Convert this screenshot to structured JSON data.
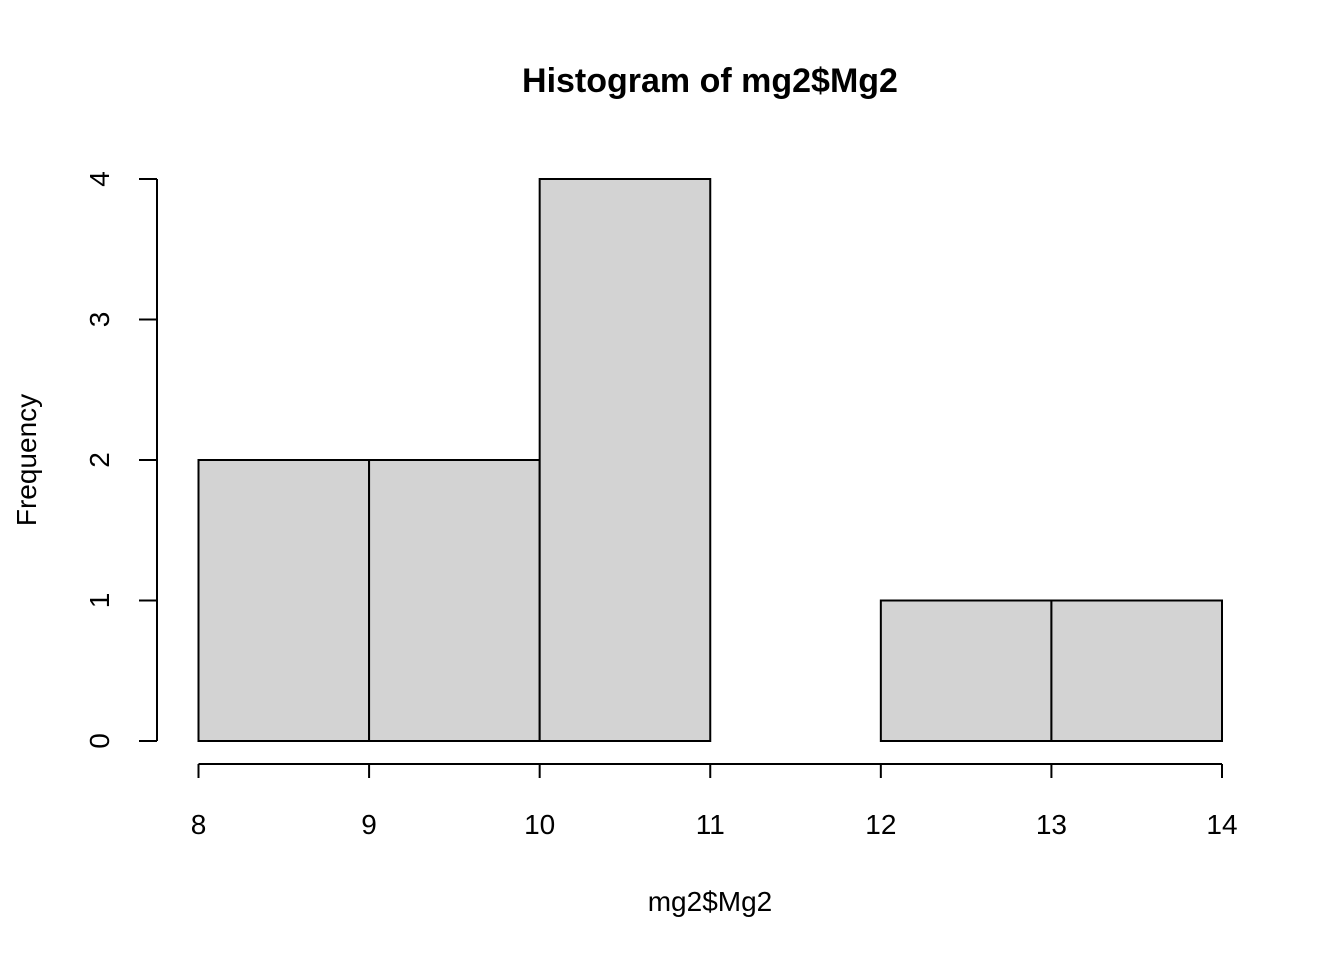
{
  "chart_data": {
    "type": "bar",
    "subtype": "histogram",
    "title": "Histogram of mg2$Mg2",
    "xlabel": "mg2$Mg2",
    "ylabel": "Frequency",
    "bins": [
      {
        "start": 8,
        "end": 9,
        "count": 2
      },
      {
        "start": 9,
        "end": 10,
        "count": 2
      },
      {
        "start": 10,
        "end": 11,
        "count": 4
      },
      {
        "start": 11,
        "end": 12,
        "count": 0
      },
      {
        "start": 12,
        "end": 13,
        "count": 1
      },
      {
        "start": 13,
        "end": 14,
        "count": 1
      }
    ],
    "xlim": [
      8,
      14
    ],
    "ylim": [
      0,
      4
    ],
    "xticks": [
      8,
      9,
      10,
      11,
      12,
      13,
      14
    ],
    "yticks": [
      0,
      1,
      2,
      3,
      4
    ],
    "grid": false,
    "bar_fill": "#d3d3d3",
    "bar_stroke": "#000000"
  }
}
